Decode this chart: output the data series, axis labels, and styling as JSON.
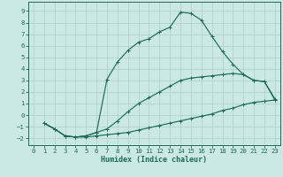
{
  "line1_x": [
    1,
    2,
    3,
    4,
    5,
    6,
    7,
    8,
    9,
    10,
    11,
    12,
    13,
    14,
    15,
    16,
    17,
    18,
    19,
    20,
    21,
    22,
    23
  ],
  "line1_y": [
    -0.7,
    -1.2,
    -1.8,
    -1.9,
    -1.9,
    -1.8,
    -1.7,
    -1.6,
    -1.5,
    -1.3,
    -1.1,
    -0.9,
    -0.7,
    -0.5,
    -0.3,
    -0.1,
    0.1,
    0.4,
    0.6,
    0.9,
    1.1,
    1.2,
    1.3
  ],
  "line2_x": [
    1,
    2,
    3,
    4,
    5,
    6,
    7,
    8,
    9,
    10,
    11,
    12,
    13,
    14,
    15,
    16,
    17,
    18,
    19,
    20,
    21,
    22,
    23
  ],
  "line2_y": [
    -0.7,
    -1.2,
    -1.8,
    -1.9,
    -1.8,
    -1.5,
    -1.2,
    -0.5,
    0.3,
    1.0,
    1.5,
    2.0,
    2.5,
    3.0,
    3.2,
    3.3,
    3.4,
    3.5,
    3.6,
    3.5,
    3.0,
    2.9,
    1.3
  ],
  "line3_x": [
    1,
    2,
    3,
    4,
    5,
    6,
    7,
    8,
    9,
    10,
    11,
    12,
    13,
    14,
    15,
    16,
    17,
    18,
    19,
    20,
    21,
    22,
    23
  ],
  "line3_y": [
    -0.7,
    -1.2,
    -1.8,
    -1.9,
    -1.8,
    -1.5,
    3.1,
    4.6,
    5.6,
    6.3,
    6.6,
    7.2,
    7.6,
    8.9,
    8.8,
    8.2,
    6.8,
    5.5,
    4.4,
    3.5,
    3.0,
    2.9,
    1.4
  ],
  "line_color": "#1a6b5a",
  "bg_color": "#cce8e4",
  "grid_color": "#aacfca",
  "xlabel": "Humidex (Indice chaleur)",
  "xlim": [
    -0.5,
    23.5
  ],
  "ylim": [
    -2.6,
    9.8
  ],
  "xticks": [
    0,
    1,
    2,
    3,
    4,
    5,
    6,
    7,
    8,
    9,
    10,
    11,
    12,
    13,
    14,
    15,
    16,
    17,
    18,
    19,
    20,
    21,
    22,
    23
  ],
  "yticks": [
    -2,
    -1,
    0,
    1,
    2,
    3,
    4,
    5,
    6,
    7,
    8,
    9
  ],
  "label_fontsize": 6.0,
  "tick_fontsize": 5.2
}
